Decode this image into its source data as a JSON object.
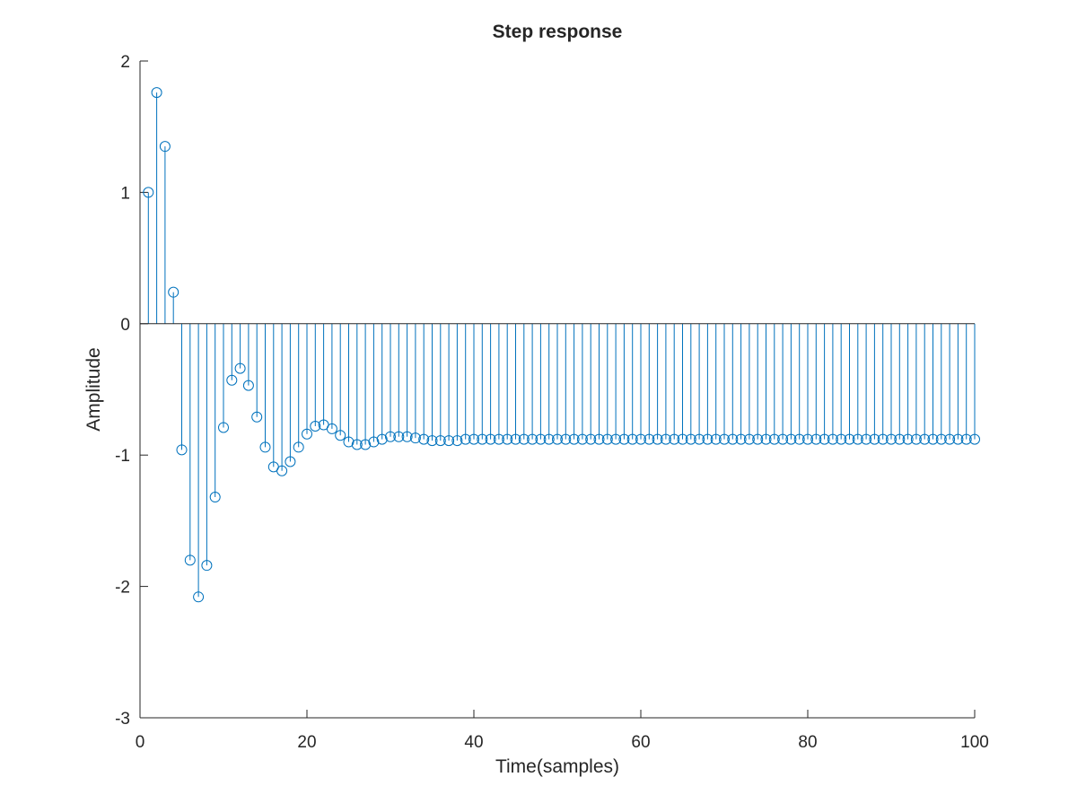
{
  "chart_data": {
    "type": "stem",
    "title": "Step response",
    "xlabel": "Time(samples)",
    "ylabel": "Amplitude",
    "xlim": [
      0,
      100
    ],
    "ylim": [
      -3,
      2
    ],
    "xticks": [
      0,
      20,
      40,
      60,
      80,
      100
    ],
    "yticks": [
      -3,
      -2,
      -1,
      0,
      1,
      2
    ],
    "xtick_labels": [
      "0",
      "20",
      "40",
      "60",
      "80",
      "100"
    ],
    "ytick_labels": [
      "-3",
      "-2",
      "-1",
      "0",
      "1",
      "2"
    ],
    "baseline": 0,
    "grid": false,
    "color": "#0072BD",
    "x": [
      1,
      2,
      3,
      4,
      5,
      6,
      7,
      8,
      9,
      10,
      11,
      12,
      13,
      14,
      15,
      16,
      17,
      18,
      19,
      20,
      21,
      22,
      23,
      24,
      25,
      26,
      27,
      28,
      29,
      30,
      31,
      32,
      33,
      34,
      35,
      36,
      37,
      38,
      39,
      40,
      41,
      42,
      43,
      44,
      45,
      46,
      47,
      48,
      49,
      50,
      51,
      52,
      53,
      54,
      55,
      56,
      57,
      58,
      59,
      60,
      61,
      62,
      63,
      64,
      65,
      66,
      67,
      68,
      69,
      70,
      71,
      72,
      73,
      74,
      75,
      76,
      77,
      78,
      79,
      80,
      81,
      82,
      83,
      84,
      85,
      86,
      87,
      88,
      89,
      90,
      91,
      92,
      93,
      94,
      95,
      96,
      97,
      98,
      99,
      100
    ],
    "y": [
      1.0,
      1.76,
      1.35,
      0.24,
      -0.96,
      -1.8,
      -2.08,
      -1.84,
      -1.32,
      -0.79,
      -0.43,
      -0.34,
      -0.47,
      -0.71,
      -0.94,
      -1.09,
      -1.12,
      -1.05,
      -0.94,
      -0.84,
      -0.78,
      -0.77,
      -0.8,
      -0.85,
      -0.9,
      -0.92,
      -0.92,
      -0.9,
      -0.88,
      -0.86,
      -0.86,
      -0.86,
      -0.87,
      -0.88,
      -0.89,
      -0.89,
      -0.89,
      -0.89,
      -0.88,
      -0.88,
      -0.88,
      -0.88,
      -0.88,
      -0.88,
      -0.88,
      -0.88,
      -0.88,
      -0.88,
      -0.88,
      -0.88,
      -0.88,
      -0.88,
      -0.88,
      -0.88,
      -0.88,
      -0.88,
      -0.88,
      -0.88,
      -0.88,
      -0.88,
      -0.88,
      -0.88,
      -0.88,
      -0.88,
      -0.88,
      -0.88,
      -0.88,
      -0.88,
      -0.88,
      -0.88,
      -0.88,
      -0.88,
      -0.88,
      -0.88,
      -0.88,
      -0.88,
      -0.88,
      -0.88,
      -0.88,
      -0.88,
      -0.88,
      -0.88,
      -0.88,
      -0.88,
      -0.88,
      -0.88,
      -0.88,
      -0.88,
      -0.88,
      -0.88,
      -0.88,
      -0.88,
      -0.88,
      -0.88,
      -0.88,
      -0.88,
      -0.88,
      -0.88,
      -0.88,
      -0.88
    ]
  }
}
